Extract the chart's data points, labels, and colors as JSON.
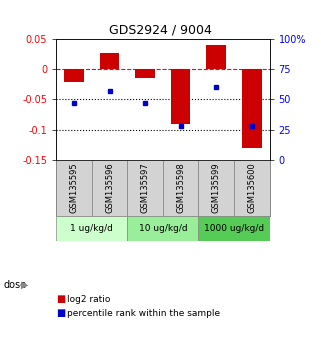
{
  "title": "GDS2924 / 9004",
  "samples": [
    "GSM135595",
    "GSM135596",
    "GSM135597",
    "GSM135598",
    "GSM135599",
    "GSM135600"
  ],
  "log2_ratios": [
    -0.022,
    0.027,
    -0.015,
    -0.09,
    0.04,
    -0.13
  ],
  "percentile_ranks": [
    47,
    57,
    47,
    28,
    60,
    28
  ],
  "bar_color": "#cc0000",
  "dot_color": "#0000cc",
  "left_ylim": [
    -0.15,
    0.05
  ],
  "right_ylim": [
    0,
    100
  ],
  "left_yticks": [
    0.05,
    0,
    -0.05,
    -0.1,
    -0.15
  ],
  "right_yticks": [
    100,
    75,
    50,
    25,
    0
  ],
  "hline_y": [
    0,
    -0.05,
    -0.1
  ],
  "hline_styles": [
    "--",
    ":",
    ":"
  ],
  "hline_colors": [
    "red",
    "black",
    "black"
  ],
  "dose_groups": [
    {
      "label": "1 ug/kg/d",
      "cols": [
        0,
        1
      ],
      "color": "#ccffcc"
    },
    {
      "label": "10 ug/kg/d",
      "cols": [
        2,
        3
      ],
      "color": "#99ee99"
    },
    {
      "label": "1000 ug/kg/d",
      "cols": [
        4,
        5
      ],
      "color": "#55cc55"
    }
  ],
  "legend_items": [
    {
      "label": "log2 ratio",
      "color": "#cc0000"
    },
    {
      "label": "percentile rank within the sample",
      "color": "#0000cc"
    }
  ],
  "bar_width": 0.55
}
